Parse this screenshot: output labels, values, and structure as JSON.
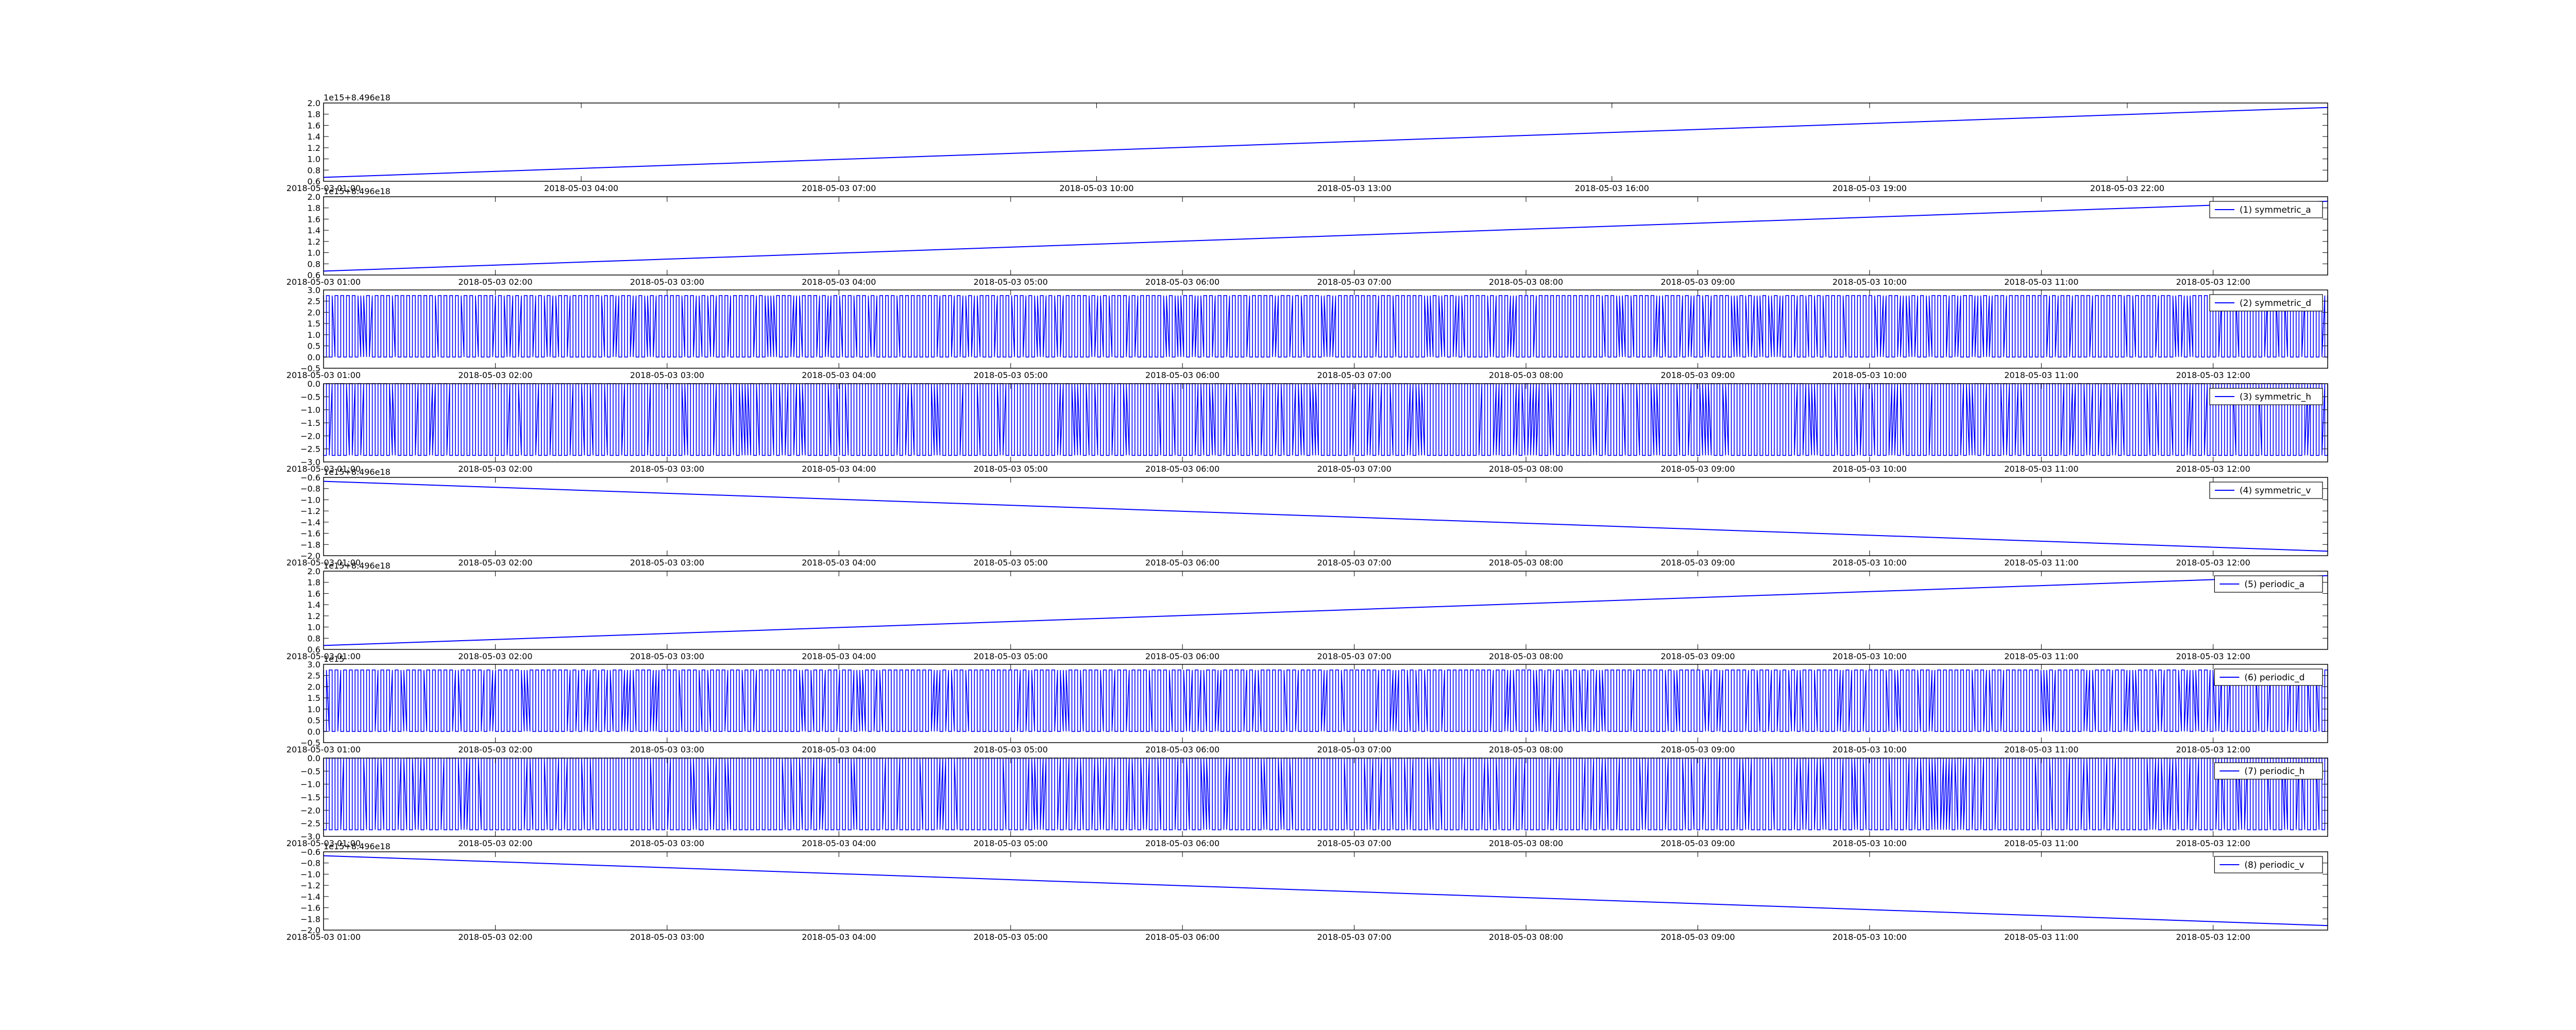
{
  "chart_data": [
    {
      "type": "line",
      "offset_label": "1e15+8.496e18",
      "legend": "",
      "ylim": [
        0.6,
        2.0
      ],
      "yticks": [
        "0.6",
        "0.8",
        "1.0",
        "1.2",
        "1.4",
        "1.6",
        "1.8",
        "2.0"
      ],
      "xticks": [
        "2018-05-03 01:00",
        "2018-05-03 04:00",
        "2018-05-03 07:00",
        "2018-05-03 10:00",
        "2018-05-03 13:00",
        "2018-05-03 16:00",
        "2018-05-03 19:00",
        "2018-05-03 22:00"
      ],
      "xrange": [
        "2018-05-03 01:00",
        "2018-05-04 00:20"
      ],
      "series": [
        {
          "x": [
            "2018-05-03 01:00",
            "2018-05-04 00:20"
          ],
          "y": [
            0.67,
            1.92
          ]
        }
      ],
      "color": "#0000ff"
    },
    {
      "type": "line",
      "offset_label": "1e15+8.496e18",
      "legend": "(1) symmetric_a",
      "ylim": [
        0.6,
        2.0
      ],
      "yticks": [
        "0.6",
        "0.8",
        "1.0",
        "1.2",
        "1.4",
        "1.6",
        "1.8",
        "2.0"
      ],
      "xticks": [
        "2018-05-03 01:00",
        "2018-05-03 02:00",
        "2018-05-03 03:00",
        "2018-05-03 04:00",
        "2018-05-03 05:00",
        "2018-05-03 06:00",
        "2018-05-03 07:00",
        "2018-05-03 08:00",
        "2018-05-03 09:00",
        "2018-05-03 10:00",
        "2018-05-03 11:00",
        "2018-05-03 12:00"
      ],
      "xrange": [
        "2018-05-03 01:00",
        "2018-05-03 12:40"
      ],
      "series": [
        {
          "x": [
            "2018-05-03 01:00",
            "2018-05-03 12:40"
          ],
          "y": [
            0.67,
            1.92
          ]
        }
      ],
      "color": "#0000ff"
    },
    {
      "type": "line",
      "offset_label": "",
      "legend": "(2) symmetric_d",
      "ylim": [
        -0.5,
        3.0
      ],
      "yticks": [
        "−0.5",
        "0.0",
        "0.5",
        "1.0",
        "1.5",
        "2.0",
        "2.5",
        "3.0"
      ],
      "xticks": [
        "2018-05-03 01:00",
        "2018-05-03 02:00",
        "2018-05-03 03:00",
        "2018-05-03 04:00",
        "2018-05-03 05:00",
        "2018-05-03 06:00",
        "2018-05-03 07:00",
        "2018-05-03 08:00",
        "2018-05-03 09:00",
        "2018-05-03 10:00",
        "2018-05-03 11:00",
        "2018-05-03 12:00"
      ],
      "xrange": [
        "2018-05-03 01:00",
        "2018-05-03 12:40"
      ],
      "dense": {
        "low": 0.0,
        "high": 2.75,
        "count": 700
      },
      "color": "#0000ff"
    },
    {
      "type": "line",
      "offset_label": "",
      "legend": "(3) symmetric_h",
      "ylim": [
        -3.0,
        0.0
      ],
      "yticks": [
        "−3.0",
        "−2.5",
        "−2.0",
        "−1.5",
        "−1.0",
        "−0.5",
        "0.0"
      ],
      "xticks": [
        "2018-05-03 01:00",
        "2018-05-03 02:00",
        "2018-05-03 03:00",
        "2018-05-03 04:00",
        "2018-05-03 05:00",
        "2018-05-03 06:00",
        "2018-05-03 07:00",
        "2018-05-03 08:00",
        "2018-05-03 09:00",
        "2018-05-03 10:00",
        "2018-05-03 11:00",
        "2018-05-03 12:00"
      ],
      "xrange": [
        "2018-05-03 01:00",
        "2018-05-03 12:40"
      ],
      "dense": {
        "low": -2.75,
        "high": 0.0,
        "count": 700
      },
      "color": "#0000ff"
    },
    {
      "type": "line",
      "offset_label": "1e15+8.496e18",
      "legend": "(4) symmetric_v",
      "ylim": [
        -2.0,
        -0.6
      ],
      "yticks": [
        "−2.0",
        "−1.8",
        "−1.6",
        "−1.4",
        "−1.2",
        "−1.0",
        "−0.8",
        "−0.6"
      ],
      "xticks": [
        "2018-05-03 01:00",
        "2018-05-03 02:00",
        "2018-05-03 03:00",
        "2018-05-03 04:00",
        "2018-05-03 05:00",
        "2018-05-03 06:00",
        "2018-05-03 07:00",
        "2018-05-03 08:00",
        "2018-05-03 09:00",
        "2018-05-03 10:00",
        "2018-05-03 11:00",
        "2018-05-03 12:00"
      ],
      "xrange": [
        "2018-05-03 01:00",
        "2018-05-03 12:40"
      ],
      "series": [
        {
          "x": [
            "2018-05-03 01:00",
            "2018-05-03 12:40"
          ],
          "y": [
            -0.67,
            -1.92
          ]
        }
      ],
      "color": "#0000ff"
    },
    {
      "type": "line",
      "offset_label": "1e15+8.496e18",
      "legend": "(5) periodic_a",
      "ylim": [
        0.6,
        2.0
      ],
      "yticks": [
        "0.6",
        "0.8",
        "1.0",
        "1.2",
        "1.4",
        "1.6",
        "1.8",
        "2.0"
      ],
      "xticks": [
        "2018-05-03 01:00",
        "2018-05-03 02:00",
        "2018-05-03 03:00",
        "2018-05-03 04:00",
        "2018-05-03 05:00",
        "2018-05-03 06:00",
        "2018-05-03 07:00",
        "2018-05-03 08:00",
        "2018-05-03 09:00",
        "2018-05-03 10:00",
        "2018-05-03 11:00",
        "2018-05-03 12:00"
      ],
      "xrange": [
        "2018-05-03 01:00",
        "2018-05-03 12:40"
      ],
      "series": [
        {
          "x": [
            "2018-05-03 01:00",
            "2018-05-03 12:40"
          ],
          "y": [
            0.67,
            1.92
          ]
        }
      ],
      "color": "#0000ff"
    },
    {
      "type": "line",
      "offset_label": "1e15",
      "legend": "(6) periodic_d",
      "ylim": [
        -0.5,
        3.0
      ],
      "yticks": [
        "−0.5",
        "0.0",
        "0.5",
        "1.0",
        "1.5",
        "2.0",
        "2.5",
        "3.0"
      ],
      "xticks": [
        "2018-05-03 01:00",
        "2018-05-03 02:00",
        "2018-05-03 03:00",
        "2018-05-03 04:00",
        "2018-05-03 05:00",
        "2018-05-03 06:00",
        "2018-05-03 07:00",
        "2018-05-03 08:00",
        "2018-05-03 09:00",
        "2018-05-03 10:00",
        "2018-05-03 11:00",
        "2018-05-03 12:00"
      ],
      "xrange": [
        "2018-05-03 01:00",
        "2018-05-03 12:40"
      ],
      "dense": {
        "low": 0.0,
        "high": 2.75,
        "count": 700
      },
      "color": "#0000ff"
    },
    {
      "type": "line",
      "offset_label": "",
      "legend": "(7) periodic_h",
      "ylim": [
        -3.0,
        0.0
      ],
      "yticks": [
        "−3.0",
        "−2.5",
        "−2.0",
        "−1.5",
        "−1.0",
        "−0.5",
        "0.0"
      ],
      "xticks": [
        "2018-05-03 01:00",
        "2018-05-03 02:00",
        "2018-05-03 03:00",
        "2018-05-03 04:00",
        "2018-05-03 05:00",
        "2018-05-03 06:00",
        "2018-05-03 07:00",
        "2018-05-03 08:00",
        "2018-05-03 09:00",
        "2018-05-03 10:00",
        "2018-05-03 11:00",
        "2018-05-03 12:00"
      ],
      "xrange": [
        "2018-05-03 01:00",
        "2018-05-03 12:40"
      ],
      "dense": {
        "low": -2.75,
        "high": 0.0,
        "count": 700
      },
      "color": "#0000ff"
    },
    {
      "type": "line",
      "offset_label": "1e15+8.496e18",
      "legend": "(8) periodic_v",
      "ylim": [
        -2.0,
        -0.6
      ],
      "yticks": [
        "−2.0",
        "−1.8",
        "−1.6",
        "−1.4",
        "−1.2",
        "−1.0",
        "−0.8",
        "−0.6"
      ],
      "xticks": [
        "2018-05-03 01:00",
        "2018-05-03 02:00",
        "2018-05-03 03:00",
        "2018-05-03 04:00",
        "2018-05-03 05:00",
        "2018-05-03 06:00",
        "2018-05-03 07:00",
        "2018-05-03 08:00",
        "2018-05-03 09:00",
        "2018-05-03 10:00",
        "2018-05-03 11:00",
        "2018-05-03 12:00"
      ],
      "xrange": [
        "2018-05-03 01:00",
        "2018-05-03 12:40"
      ],
      "series": [
        {
          "x": [
            "2018-05-03 01:00",
            "2018-05-03 12:40"
          ],
          "y": [
            -0.67,
            -1.92
          ]
        }
      ],
      "color": "#0000ff"
    }
  ]
}
